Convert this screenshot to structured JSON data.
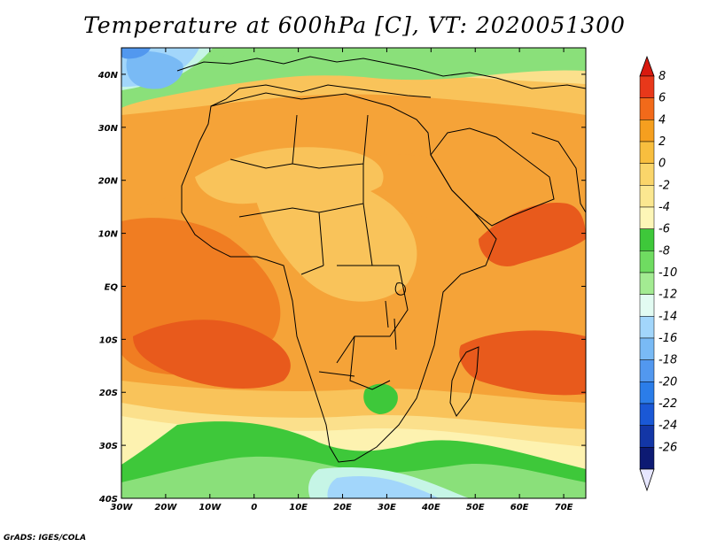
{
  "title": "Temperature at 600hPa [C], VT: 2020051300",
  "credit": "GrADS: IGES/COLA",
  "map": {
    "lon_range": [
      -30,
      75
    ],
    "lat_range": [
      -40,
      45
    ],
    "lat_ticks": [
      {
        "value": 40,
        "label": "40N"
      },
      {
        "value": 30,
        "label": "30N"
      },
      {
        "value": 20,
        "label": "20N"
      },
      {
        "value": 10,
        "label": "10N"
      },
      {
        "value": 0,
        "label": "EQ"
      },
      {
        "value": -10,
        "label": "10S"
      },
      {
        "value": -20,
        "label": "20S"
      },
      {
        "value": -30,
        "label": "30S"
      },
      {
        "value": -40,
        "label": "40S"
      }
    ],
    "lon_ticks": [
      {
        "value": -30,
        "label": "30W"
      },
      {
        "value": -20,
        "label": "20W"
      },
      {
        "value": -10,
        "label": "10W"
      },
      {
        "value": 0,
        "label": "0"
      },
      {
        "value": 10,
        "label": "10E"
      },
      {
        "value": 20,
        "label": "20E"
      },
      {
        "value": 30,
        "label": "30E"
      },
      {
        "value": 40,
        "label": "40E"
      },
      {
        "value": 50,
        "label": "50E"
      },
      {
        "value": 60,
        "label": "60E"
      },
      {
        "value": 70,
        "label": "70E"
      }
    ]
  },
  "colorbar": {
    "labels": [
      "8",
      "6",
      "4",
      "2",
      "0",
      "-2",
      "-4",
      "-6",
      "-8",
      "-10",
      "-12",
      "-14",
      "-16",
      "-18",
      "-20",
      "-22",
      "-24",
      "-26"
    ],
    "colors": [
      "#e8381a",
      "#f26a1a",
      "#f59f1f",
      "#f8be3e",
      "#fad56a",
      "#fbe790",
      "#fdf6b7",
      "#3ec83a",
      "#6fdc61",
      "#a3eb92",
      "#e2fbf2",
      "#a2d6fb",
      "#79baf5",
      "#5298ef",
      "#2b7de9",
      "#1a58d6",
      "#1336a6",
      "#0d1a73"
    ],
    "top_color": "#d8190f",
    "bottom_color": "#e6e6ff"
  },
  "field_colors": {
    "base": "#f5a338",
    "warm": "#f07d22",
    "hot": "#e85a1c",
    "mild": "#f9c35a",
    "cool": "#fbe08c",
    "pale": "#fdf2b0",
    "green": "#3ec83a",
    "lightgreen": "#8ae07a",
    "cyan": "#c6f5e6",
    "lightblue": "#a2d6fb",
    "blue": "#79baf5",
    "deepblue": "#5298ef"
  }
}
